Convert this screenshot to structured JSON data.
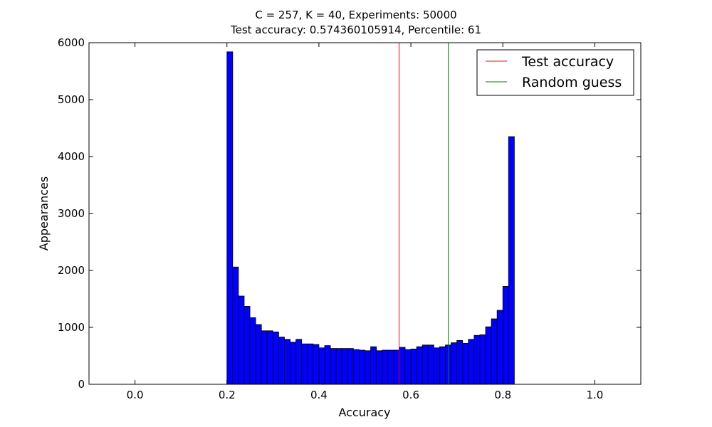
{
  "chart_data": {
    "type": "bar",
    "title_line1": "C = 257, K = 40, Experiments: 50000",
    "title_line2": "Test accuracy: 0.574360105914, Percentile: 61",
    "xlabel": "Accuracy",
    "ylabel": "Appearances",
    "xlim": [
      -0.1,
      1.1
    ],
    "ylim": [
      0,
      6000
    ],
    "xticks": [
      0.0,
      0.2,
      0.4,
      0.6,
      0.8,
      1.0
    ],
    "xtick_labels": [
      "0.0",
      "0.2",
      "0.4",
      "0.6",
      "0.8",
      "1.0"
    ],
    "yticks": [
      0,
      1000,
      2000,
      3000,
      4000,
      5000,
      6000
    ],
    "ytick_labels": [
      "0",
      "1000",
      "2000",
      "3000",
      "4000",
      "5000",
      "6000"
    ],
    "bin_start": 0.2,
    "bin_width": 0.0125,
    "values": [
      5840,
      2060,
      1550,
      1370,
      1170,
      1050,
      940,
      940,
      920,
      830,
      790,
      740,
      790,
      710,
      710,
      700,
      640,
      680,
      630,
      630,
      630,
      630,
      610,
      600,
      590,
      660,
      590,
      600,
      600,
      600,
      650,
      610,
      620,
      660,
      690,
      690,
      640,
      660,
      690,
      730,
      770,
      720,
      790,
      860,
      870,
      1010,
      1150,
      1300,
      1720,
      4350
    ],
    "bar_color": "#0000ff",
    "vlines": [
      {
        "name": "Test accuracy",
        "x": 0.574360105914,
        "color": "#ff0000"
      },
      {
        "name": "Random guess",
        "x": 0.6813,
        "color": "#008000"
      }
    ],
    "legend": {
      "position": "top-right",
      "entries": [
        "Test accuracy",
        "Random guess"
      ]
    },
    "grid": false
  }
}
